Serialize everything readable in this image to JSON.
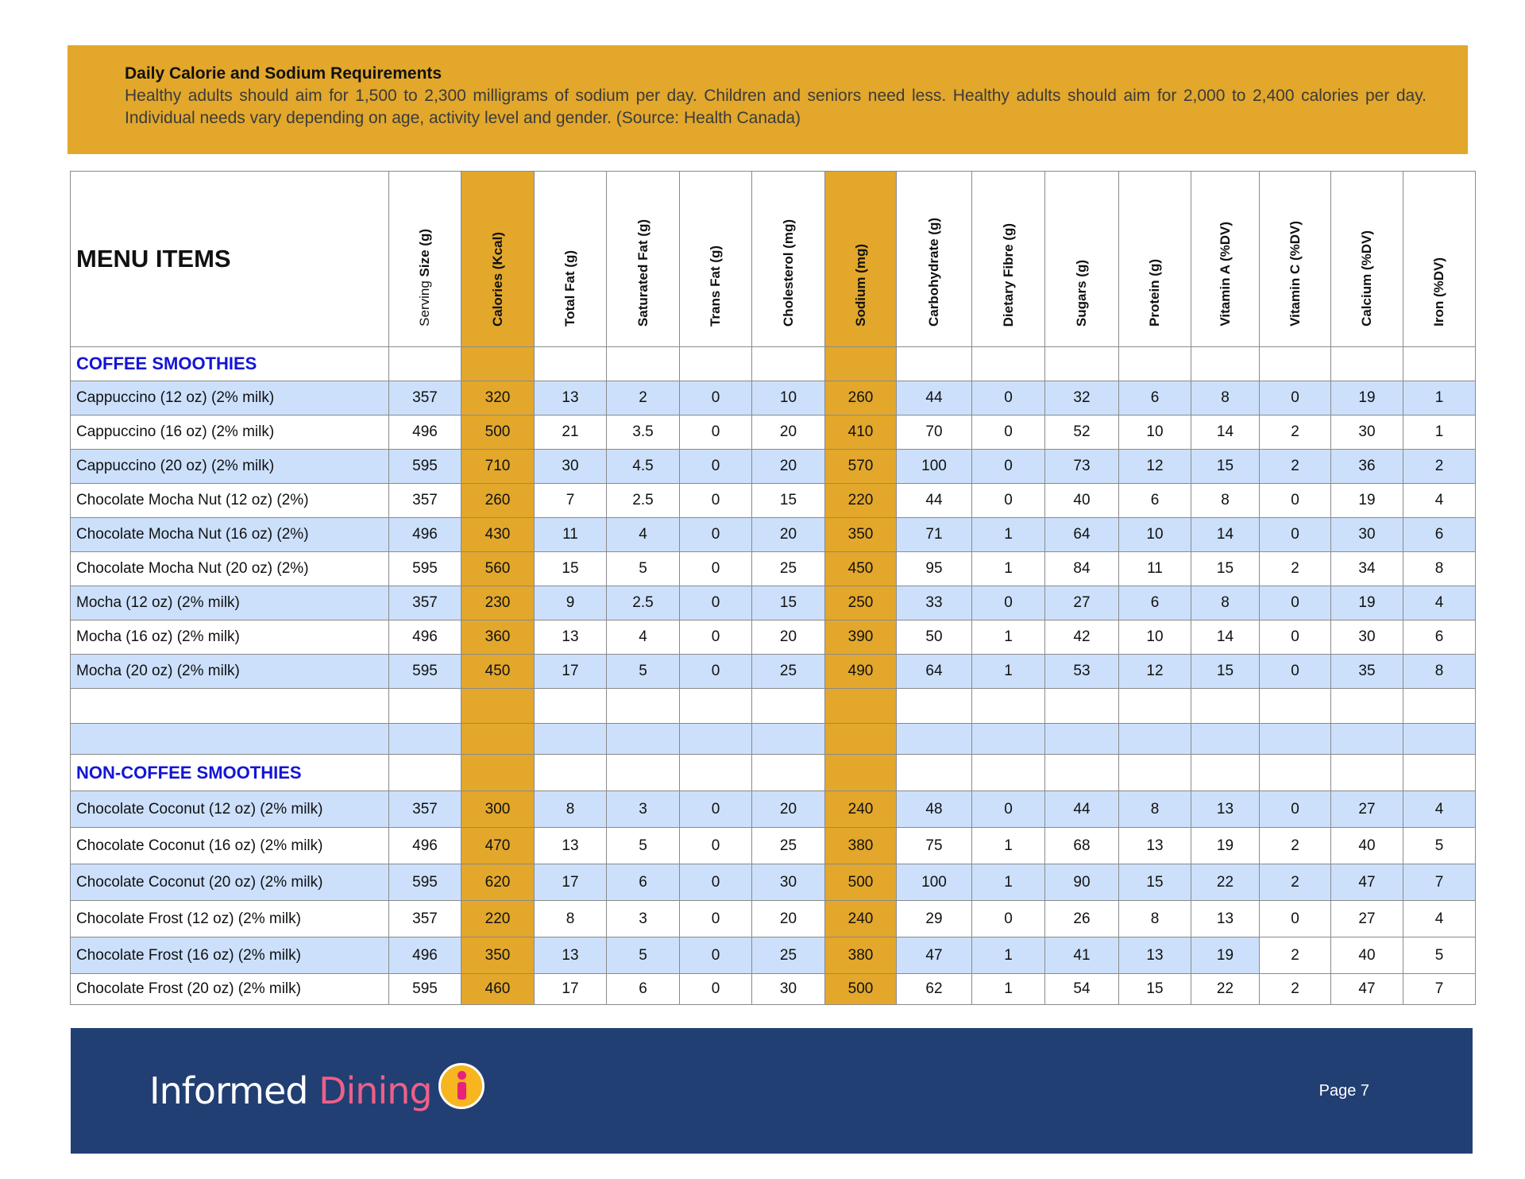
{
  "banner": {
    "title": "Daily Calorie and Sodium Requirements",
    "text": "Healthy adults should aim for 1,500 to 2,300 milligrams of sodium per day. Children and seniors need less. Healthy adults should aim for 2,000 to 2,400 calories per day. Individual needs vary depending on age, activity level and gender. (Source: Health Canada)"
  },
  "colors": {
    "highlight": "#e2a72b",
    "row_blue": "#cce0fb",
    "section": "#1414d6",
    "footer": "#213f73"
  },
  "table": {
    "menu_header": "MENU ITEMS",
    "columns": [
      {
        "pre": "Serving ",
        "label": "Size (g)"
      },
      {
        "label": "Calories (Kcal)",
        "hl": true
      },
      {
        "label": "Total Fat (g)"
      },
      {
        "label": "Saturated Fat (g)"
      },
      {
        "label": "Trans Fat (g)"
      },
      {
        "label": "Cholesterol (mg)"
      },
      {
        "label": "Sodium (mg)",
        "hl": true
      },
      {
        "label": "Carbohydrate (g)"
      },
      {
        "label": "Dietary Fibre (g)"
      },
      {
        "label": "Sugars  (g)"
      },
      {
        "label": "Protein (g)"
      },
      {
        "label": "Vitamin A (%DV)"
      },
      {
        "label": "Vitamin C (%DV)"
      },
      {
        "label": "Calcium (%DV)"
      },
      {
        "label": "Iron (%DV)"
      }
    ],
    "sections": [
      {
        "title": "COFFEE SMOOTHIES",
        "rows": [
          {
            "name": "Cappuccino (12 oz) (2% milk)",
            "values": [
              "357",
              "320",
              "13",
              "2",
              "0",
              "10",
              "260",
              "44",
              "0",
              "32",
              "6",
              "8",
              "0",
              "19",
              "1"
            ]
          },
          {
            "name": "Cappuccino (16 oz) (2% milk)",
            "values": [
              "496",
              "500",
              "21",
              "3.5",
              "0",
              "20",
              "410",
              "70",
              "0",
              "52",
              "10",
              "14",
              "2",
              "30",
              "1"
            ]
          },
          {
            "name": "Cappuccino (20 oz) (2% milk)",
            "values": [
              "595",
              "710",
              "30",
              "4.5",
              "0",
              "20",
              "570",
              "100",
              "0",
              "73",
              "12",
              "15",
              "2",
              "36",
              "2"
            ]
          },
          {
            "name": "Chocolate Mocha Nut (12 oz) (2%)",
            "values": [
              "357",
              "260",
              "7",
              "2.5",
              "0",
              "15",
              "220",
              "44",
              "0",
              "40",
              "6",
              "8",
              "0",
              "19",
              "4"
            ]
          },
          {
            "name": "Chocolate Mocha Nut (16 oz) (2%)",
            "values": [
              "496",
              "430",
              "11",
              "4",
              "0",
              "20",
              "350",
              "71",
              "1",
              "64",
              "10",
              "14",
              "0",
              "30",
              "6"
            ]
          },
          {
            "name": "Chocolate Mocha Nut (20 oz) (2%)",
            "values": [
              "595",
              "560",
              "15",
              "5",
              "0",
              "25",
              "450",
              "95",
              "1",
              "84",
              "11",
              "15",
              "2",
              "34",
              "8"
            ]
          },
          {
            "name": "Mocha (12 oz) (2% milk)",
            "values": [
              "357",
              "230",
              "9",
              "2.5",
              "0",
              "15",
              "250",
              "33",
              "0",
              "27",
              "6",
              "8",
              "0",
              "19",
              "4"
            ]
          },
          {
            "name": "Mocha (16 oz) (2% milk)",
            "values": [
              "496",
              "360",
              "13",
              "4",
              "0",
              "20",
              "390",
              "50",
              "1",
              "42",
              "10",
              "14",
              "0",
              "30",
              "6"
            ]
          },
          {
            "name": "Mocha (20 oz) (2% milk)",
            "values": [
              "595",
              "450",
              "17",
              "5",
              "0",
              "25",
              "490",
              "64",
              "1",
              "53",
              "12",
              "15",
              "0",
              "35",
              "8"
            ]
          }
        ]
      },
      {
        "title": "NON-COFFEE SMOOTHIES",
        "rows": [
          {
            "name": "Chocolate Coconut (12 oz) (2% milk)",
            "values": [
              "357",
              "300",
              "8",
              "3",
              "0",
              "20",
              "240",
              "48",
              "0",
              "44",
              "8",
              "13",
              "0",
              "27",
              "4"
            ]
          },
          {
            "name": "Chocolate Coconut (16 oz) (2% milk)",
            "values": [
              "496",
              "470",
              "13",
              "5",
              "0",
              "25",
              "380",
              "75",
              "1",
              "68",
              "13",
              "19",
              "2",
              "40",
              "5"
            ]
          },
          {
            "name": "Chocolate Coconut (20 oz) (2% milk)",
            "values": [
              "595",
              "620",
              "17",
              "6",
              "0",
              "30",
              "500",
              "100",
              "1",
              "90",
              "15",
              "22",
              "2",
              "47",
              "7"
            ]
          },
          {
            "name": "Chocolate Frost (12 oz) (2% milk)",
            "values": [
              "357",
              "220",
              "8",
              "3",
              "0",
              "20",
              "240",
              "29",
              "0",
              "26",
              "8",
              "13",
              "0",
              "27",
              "4"
            ]
          },
          {
            "name": "Chocolate Frost (16 oz) (2% milk)",
            "values": [
              "496",
              "350",
              "13",
              "5",
              "0",
              "25",
              "380",
              "47",
              "1",
              "41",
              "13",
              "19",
              "2",
              "40",
              "5"
            ]
          },
          {
            "name": "Chocolate Frost (20 oz) (2% milk)",
            "values": [
              "595",
              "460",
              "17",
              "6",
              "0",
              "30",
              "500",
              "62",
              "1",
              "54",
              "15",
              "22",
              "2",
              "47",
              "7"
            ]
          }
        ]
      }
    ]
  },
  "footer": {
    "logo_text_1": "Informed",
    "logo_text_2": "Dining",
    "logo_icon": "info-i-icon",
    "page": "Page 7"
  }
}
